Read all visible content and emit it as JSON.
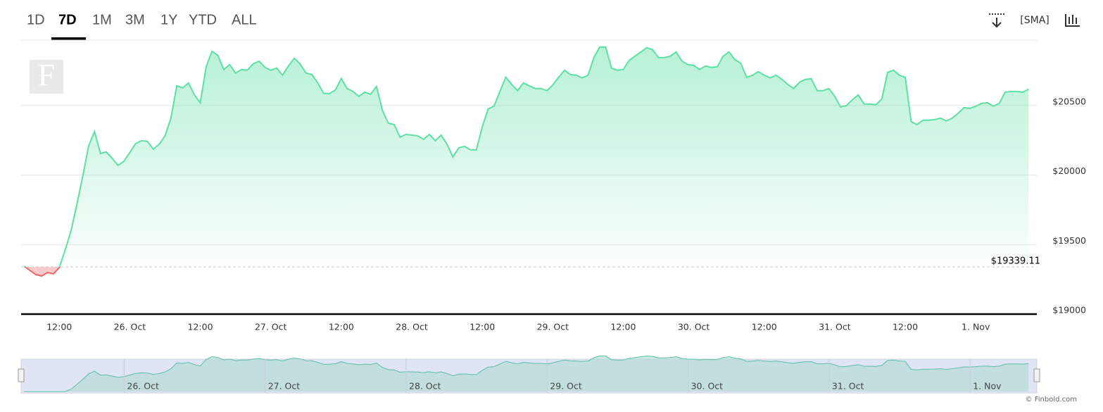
{
  "chart_data": {
    "type": "area",
    "range_buttons": [
      "1D",
      "7D",
      "1M",
      "3M",
      "1Y",
      "YTD",
      "ALL"
    ],
    "selected_range": "7D",
    "indicator_button": "[SMA]",
    "logo": "F",
    "credit": "© Finbold.com",
    "baseline": {
      "value": 19339.11,
      "label": "$19339.11"
    },
    "up_color": "#5ee0a3",
    "down_color": "#ee6666",
    "grid": true,
    "xlim": [
      5.5,
      178.4
    ],
    "xticks": [
      {
        "value": 12,
        "label": "12:00"
      },
      {
        "value": 24,
        "label": "26. Oct"
      },
      {
        "value": 36,
        "label": "12:00"
      },
      {
        "value": 48,
        "label": "27. Oct"
      },
      {
        "value": 60,
        "label": "12:00"
      },
      {
        "value": 72,
        "label": "28. Oct"
      },
      {
        "value": 84,
        "label": "12:00"
      },
      {
        "value": 96,
        "label": "29. Oct"
      },
      {
        "value": 108,
        "label": "12:00"
      },
      {
        "value": 120,
        "label": "30. Oct"
      },
      {
        "value": 132,
        "label": "12:00"
      },
      {
        "value": 144,
        "label": "31. Oct"
      },
      {
        "value": 156,
        "label": "12:00"
      },
      {
        "value": 168,
        "label": "1. Nov"
      }
    ],
    "ylim": [
      19000,
      20970
    ],
    "yticks": [
      {
        "value": 19000,
        "label": "$19000"
      },
      {
        "value": 19500,
        "label": "$19500"
      },
      {
        "value": 20000,
        "label": "$20000"
      },
      {
        "value": 20500,
        "label": "$20500"
      }
    ],
    "x": [
      6,
      7,
      8,
      9,
      10,
      11,
      12,
      13,
      14,
      15,
      16,
      17,
      18,
      19,
      20,
      21,
      22,
      23,
      24,
      25,
      26,
      27,
      28,
      29,
      30,
      31,
      32,
      33,
      34,
      35,
      36,
      37,
      38,
      39,
      40,
      41,
      42,
      43,
      44,
      45,
      46,
      47,
      48,
      49,
      50,
      51,
      52,
      53,
      54,
      55,
      56,
      57,
      58,
      59,
      60,
      61,
      62,
      63,
      64,
      65,
      66,
      67,
      68,
      69,
      70,
      71,
      72,
      73,
      74,
      75,
      76,
      77,
      78,
      79,
      80,
      81,
      82,
      83,
      84,
      85,
      86,
      87,
      88,
      89,
      90,
      91,
      92,
      93,
      94,
      95,
      96,
      97,
      98,
      99,
      100,
      101,
      102,
      103,
      104,
      105,
      106,
      107,
      108,
      109,
      110,
      111,
      112,
      113,
      114,
      115,
      116,
      117,
      118,
      119,
      120,
      121,
      122,
      123,
      124,
      125,
      126,
      127,
      128,
      129,
      130,
      131,
      132,
      133,
      134,
      135,
      136,
      137,
      138,
      139,
      140,
      141,
      142,
      143,
      144,
      145,
      146,
      147,
      148,
      149,
      150,
      151,
      152,
      153,
      154,
      155,
      156,
      157,
      158,
      159,
      160,
      161,
      162,
      163,
      164,
      165,
      166,
      167,
      168,
      169,
      170,
      171,
      172,
      173,
      174,
      175,
      176,
      177
    ],
    "values": [
      19345,
      19314,
      19284,
      19274,
      19299,
      19289,
      19334,
      19461,
      19598,
      19791,
      19993,
      20211,
      20313,
      20155,
      20166,
      20120,
      20069,
      20100,
      20161,
      20226,
      20247,
      20242,
      20186,
      20221,
      20282,
      20409,
      20642,
      20627,
      20662,
      20576,
      20520,
      20779,
      20890,
      20860,
      20759,
      20794,
      20733,
      20759,
      20754,
      20799,
      20819,
      20774,
      20754,
      20769,
      20718,
      20784,
      20840,
      20799,
      20733,
      20723,
      20662,
      20586,
      20586,
      20612,
      20693,
      20622,
      20601,
      20566,
      20596,
      20581,
      20637,
      20465,
      20373,
      20363,
      20272,
      20292,
      20287,
      20282,
      20257,
      20292,
      20247,
      20287,
      20221,
      20130,
      20196,
      20206,
      20181,
      20181,
      20348,
      20475,
      20495,
      20601,
      20703,
      20652,
      20607,
      20662,
      20642,
      20622,
      20622,
      20607,
      20647,
      20703,
      20754,
      20723,
      20718,
      20698,
      20718,
      20845,
      20921,
      20921,
      20769,
      20754,
      20759,
      20824,
      20855,
      20885,
      20916,
      20901,
      20845,
      20845,
      20855,
      20885,
      20819,
      20794,
      20789,
      20759,
      20784,
      20774,
      20779,
      20855,
      20885,
      20830,
      20804,
      20703,
      20718,
      20743,
      20718,
      20698,
      20718,
      20688,
      20652,
      20622,
      20667,
      20688,
      20693,
      20607,
      20607,
      20622,
      20566,
      20490,
      20500,
      20541,
      20576,
      20510,
      20510,
      20505,
      20546,
      20738,
      20754,
      20718,
      20703,
      20384,
      20363,
      20394,
      20394,
      20399,
      20409,
      20389,
      20409,
      20444,
      20485,
      20480,
      20495,
      20515,
      20520,
      20495,
      20515,
      20596,
      20601,
      20601,
      20596,
      20617
    ]
  }
}
